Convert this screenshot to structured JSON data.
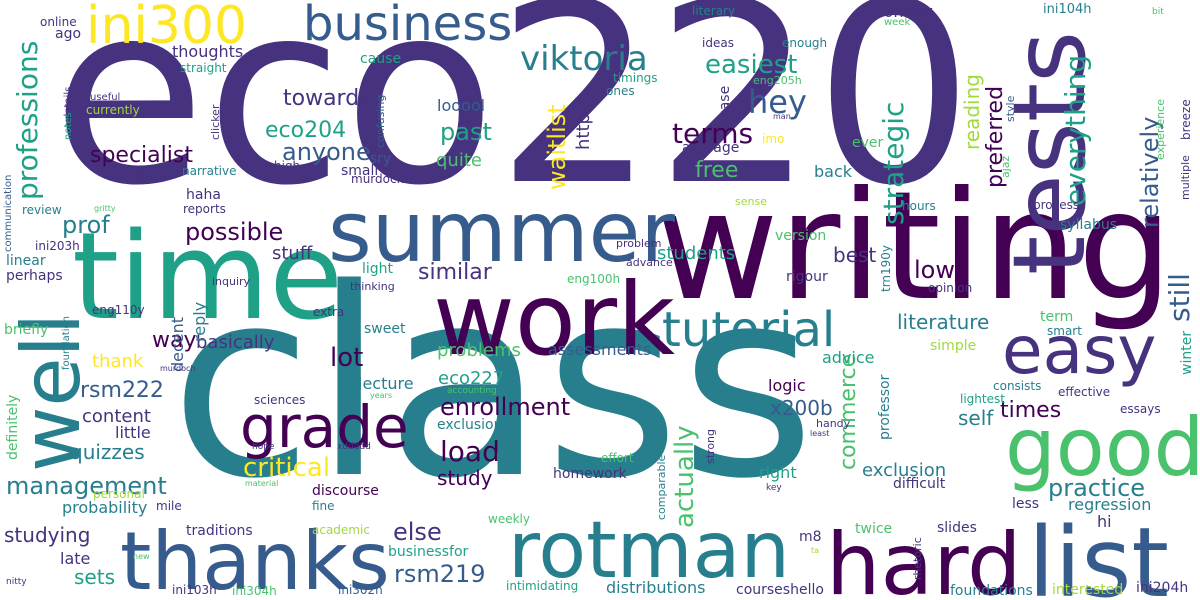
{
  "palette": [
    "#440154",
    "#46327e",
    "#365c8d",
    "#277f8e",
    "#1fa187",
    "#4ac16d",
    "#a0da39",
    "#fde725"
  ],
  "words": [
    {
      "text": "eco220",
      "color": "#46327e"
    },
    {
      "text": "class",
      "color": "#277f8e"
    },
    {
      "text": "writing",
      "color": "#440154"
    },
    {
      "text": "time",
      "color": "#1fa187"
    },
    {
      "text": "work",
      "color": "#440154"
    },
    {
      "text": "summer",
      "color": "#365c8d"
    },
    {
      "text": "tests",
      "color": "#46327e"
    },
    {
      "text": "hard",
      "color": "#440154"
    },
    {
      "text": "list",
      "color": "#365c8d"
    },
    {
      "text": "thanks",
      "color": "#365c8d"
    },
    {
      "text": "rotman",
      "color": "#277f8e"
    },
    {
      "text": "well",
      "color": "#277f8e"
    },
    {
      "text": "good",
      "color": "#4ac16d"
    },
    {
      "text": "easy",
      "color": "#46327e"
    },
    {
      "text": "business",
      "color": "#365c8d"
    },
    {
      "text": "ini300",
      "color": "#fde725"
    },
    {
      "text": "grade",
      "color": "#440154"
    },
    {
      "text": "tutorial",
      "color": "#277f8e"
    },
    {
      "text": "viktoria",
      "color": "#277f8e"
    },
    {
      "text": "easiest",
      "color": "#1fa187"
    },
    {
      "text": "hey",
      "color": "#365c8d"
    },
    {
      "text": "terms",
      "color": "#440154"
    },
    {
      "text": "strategic",
      "color": "#1fa187"
    },
    {
      "text": "preferred",
      "color": "#440154"
    },
    {
      "text": "reading",
      "color": "#a0da39"
    },
    {
      "text": "relatively",
      "color": "#365c8d"
    },
    {
      "text": "everything",
      "color": "#1fa187"
    },
    {
      "text": "still",
      "color": "#365c8d"
    },
    {
      "text": "professions",
      "color": "#1fa187"
    },
    {
      "text": "specialist",
      "color": "#440154"
    },
    {
      "text": "anyone",
      "color": "#365c8d"
    },
    {
      "text": "eco204",
      "color": "#1fa187"
    },
    {
      "text": "past",
      "color": "#1fa187"
    },
    {
      "text": "towards",
      "color": "#46327e"
    },
    {
      "text": "waitlist",
      "color": "#fde725"
    },
    {
      "text": "http",
      "color": "#46327e"
    },
    {
      "text": "free",
      "color": "#4ac16d"
    },
    {
      "text": "prof",
      "color": "#277f8e"
    },
    {
      "text": "possible",
      "color": "#440154"
    },
    {
      "text": "stuff",
      "color": "#46327e"
    },
    {
      "text": "way",
      "color": "#440154"
    },
    {
      "text": "basically",
      "color": "#46327e"
    },
    {
      "text": "lot",
      "color": "#440154"
    },
    {
      "text": "similar",
      "color": "#46327e"
    },
    {
      "text": "students",
      "color": "#1fa187"
    },
    {
      "text": "best",
      "color": "#46327e"
    },
    {
      "text": "low",
      "color": "#440154"
    },
    {
      "text": "literature",
      "color": "#277f8e"
    },
    {
      "text": "rsm222",
      "color": "#365c8d"
    },
    {
      "text": "thank",
      "color": "#fde725"
    },
    {
      "text": "content",
      "color": "#46327e"
    },
    {
      "text": "quizzes",
      "color": "#277f8e"
    },
    {
      "text": "little",
      "color": "#46327e"
    },
    {
      "text": "management",
      "color": "#277f8e"
    },
    {
      "text": "critical",
      "color": "#fde725"
    },
    {
      "text": "enrollment",
      "color": "#440154"
    },
    {
      "text": "load",
      "color": "#440154"
    },
    {
      "text": "study",
      "color": "#440154"
    },
    {
      "text": "actually",
      "color": "#4ac16d"
    },
    {
      "text": "commerce",
      "color": "#4ac16d"
    },
    {
      "text": "practice",
      "color": "#277f8e"
    },
    {
      "text": "times",
      "color": "#440154"
    },
    {
      "text": "self",
      "color": "#277f8e"
    },
    {
      "text": "x200b",
      "color": "#365c8d"
    },
    {
      "text": "problems",
      "color": "#4ac16d"
    },
    {
      "text": "assessments",
      "color": "#365c8d"
    },
    {
      "text": "eco227",
      "color": "#1fa187"
    },
    {
      "text": "exclusions",
      "color": "#277f8e"
    },
    {
      "text": "lecture",
      "color": "#277f8e"
    },
    {
      "text": "else",
      "color": "#46327e"
    },
    {
      "text": "rsm219",
      "color": "#365c8d"
    },
    {
      "text": "sets",
      "color": "#1fa187"
    },
    {
      "text": "studying",
      "color": "#46327e"
    },
    {
      "text": "late",
      "color": "#46327e"
    },
    {
      "text": "probability",
      "color": "#277f8e"
    },
    {
      "text": "definitely",
      "color": "#4ac16d"
    },
    {
      "text": "decent",
      "color": "#365c8d"
    },
    {
      "text": "reply",
      "color": "#277f8e"
    },
    {
      "text": "m8",
      "color": "#46327e"
    },
    {
      "text": "regression",
      "color": "#277f8e"
    },
    {
      "text": "hi",
      "color": "#46327e"
    },
    {
      "text": "distributions",
      "color": "#277f8e"
    },
    {
      "text": "courseshello",
      "color": "#46327e"
    },
    {
      "text": "interested",
      "color": "#a0da39"
    },
    {
      "text": "ini204h",
      "color": "#46327e"
    },
    {
      "text": "foundations",
      "color": "#277f8e"
    },
    {
      "text": "ini304h",
      "color": "#4ac16d"
    },
    {
      "text": "ini302h",
      "color": "#365c8d"
    },
    {
      "text": "ini103h",
      "color": "#46327e"
    },
    {
      "text": "intimidating",
      "color": "#1fa187"
    },
    {
      "text": "businessfor",
      "color": "#1fa187"
    },
    {
      "text": "traditions",
      "color": "#46327e"
    },
    {
      "text": "academic",
      "color": "#a0da39"
    },
    {
      "text": "weekly",
      "color": "#4ac16d"
    },
    {
      "text": "fine",
      "color": "#277f8e"
    },
    {
      "text": "discourse",
      "color": "#440154"
    },
    {
      "text": "homework",
      "color": "#46327e"
    },
    {
      "text": "right",
      "color": "#1fa187"
    },
    {
      "text": "exclusion",
      "color": "#277f8e"
    },
    {
      "text": "difficult",
      "color": "#46327e"
    },
    {
      "text": "twice",
      "color": "#4ac16d"
    },
    {
      "text": "slides",
      "color": "#46327e"
    },
    {
      "text": "less",
      "color": "#46327e"
    },
    {
      "text": "essays",
      "color": "#46327e"
    },
    {
      "text": "effective",
      "color": "#46327e"
    },
    {
      "text": "lightest",
      "color": "#1fa187"
    },
    {
      "text": "consists",
      "color": "#277f8e"
    },
    {
      "text": "winter",
      "color": "#1fa187"
    },
    {
      "text": "smart",
      "color": "#277f8e"
    },
    {
      "text": "term",
      "color": "#4ac16d"
    },
    {
      "text": "simple",
      "color": "#a0da39"
    },
    {
      "text": "advice",
      "color": "#1fa187"
    },
    {
      "text": "professor",
      "color": "#277f8e"
    },
    {
      "text": "logic",
      "color": "#440154"
    },
    {
      "text": "opinion",
      "color": "#46327e"
    },
    {
      "text": "trn190y",
      "color": "#277f8e"
    },
    {
      "text": "rigour",
      "color": "#46327e"
    },
    {
      "text": "syllabus",
      "color": "#277f8e"
    },
    {
      "text": "process",
      "color": "#46327e"
    },
    {
      "text": "hours",
      "color": "#277f8e"
    },
    {
      "text": "back",
      "color": "#277f8e"
    },
    {
      "text": "ever",
      "color": "#4ac16d"
    },
    {
      "text": "average",
      "color": "#46327e"
    },
    {
      "text": "imo",
      "color": "#fde725"
    },
    {
      "text": "case",
      "color": "#46327e"
    },
    {
      "text": "ones",
      "color": "#277f8e"
    },
    {
      "text": "timings",
      "color": "#1fa187"
    },
    {
      "text": "ideas",
      "color": "#46327e"
    },
    {
      "text": "enough",
      "color": "#277f8e"
    },
    {
      "text": "literary",
      "color": "#277f8e"
    },
    {
      "text": "monday",
      "color": "#46327e"
    },
    {
      "text": "week",
      "color": "#4ac16d"
    },
    {
      "text": "eng205h",
      "color": "#4ac16d"
    },
    {
      "text": "ini104h",
      "color": "#277f8e"
    },
    {
      "text": "bit",
      "color": "#4ac16d"
    },
    {
      "text": "style",
      "color": "#365c8d"
    },
    {
      "text": "man",
      "color": "#46327e"
    },
    {
      "text": "experience",
      "color": "#4ac16d"
    },
    {
      "text": "breeze",
      "color": "#46327e"
    },
    {
      "text": "multiple",
      "color": "#46327e"
    },
    {
      "text": "ajaz",
      "color": "#4ac16d"
    },
    {
      "text": "cause",
      "color": "#1fa187"
    },
    {
      "text": "ago",
      "color": "#46327e"
    },
    {
      "text": "thoughts",
      "color": "#46327e"
    },
    {
      "text": "straight",
      "color": "#1fa187"
    },
    {
      "text": "online",
      "color": "#46327e"
    },
    {
      "text": "details",
      "color": "#46327e"
    },
    {
      "text": "useful",
      "color": "#46327e"
    },
    {
      "text": "currently",
      "color": "#a0da39"
    },
    {
      "text": "clicker",
      "color": "#46327e"
    },
    {
      "text": "confusing",
      "color": "#365c8d"
    },
    {
      "text": "notes",
      "color": "#1fa187"
    },
    {
      "text": "looool",
      "color": "#365c8d"
    },
    {
      "text": "quite",
      "color": "#4ac16d"
    },
    {
      "text": "sry",
      "color": "#365c8d"
    },
    {
      "text": "small",
      "color": "#46327e"
    },
    {
      "text": "high",
      "color": "#46327e"
    },
    {
      "text": "murdock",
      "color": "#46327e"
    },
    {
      "text": "narrative",
      "color": "#277f8e"
    },
    {
      "text": "luck",
      "color": "#46327e"
    },
    {
      "text": "haha",
      "color": "#46327e"
    },
    {
      "text": "reports",
      "color": "#46327e"
    },
    {
      "text": "communication",
      "color": "#365c8d"
    },
    {
      "text": "review",
      "color": "#277f8e"
    },
    {
      "text": "gritty",
      "color": "#4ac16d"
    },
    {
      "text": "ini203h",
      "color": "#46327e"
    },
    {
      "text": "linear",
      "color": "#277f8e"
    },
    {
      "text": "perhaps",
      "color": "#46327e"
    },
    {
      "text": "eng110y",
      "color": "#46327e"
    },
    {
      "text": "briefly",
      "color": "#4ac16d"
    },
    {
      "text": "foundation",
      "color": "#277f8e"
    },
    {
      "text": "murdoch",
      "color": "#46327e"
    },
    {
      "text": "extra",
      "color": "#46327e"
    },
    {
      "text": "sweet",
      "color": "#277f8e"
    },
    {
      "text": "thinking",
      "color": "#46327e"
    },
    {
      "text": "light",
      "color": "#1fa187"
    },
    {
      "text": "eng100h",
      "color": "#4ac16d"
    },
    {
      "text": "inquiry",
      "color": "#46327e"
    },
    {
      "text": "problem",
      "color": "#46327e"
    },
    {
      "text": "advance",
      "color": "#46327e"
    },
    {
      "text": "version",
      "color": "#4ac16d"
    },
    {
      "text": "sense",
      "color": "#a0da39"
    },
    {
      "text": "sciences",
      "color": "#46327e"
    },
    {
      "text": "years",
      "color": "#4ac16d"
    },
    {
      "text": "accounting",
      "color": "#4ac16d"
    },
    {
      "text": "hope",
      "color": "#46327e"
    },
    {
      "text": "xddddd",
      "color": "#46327e"
    },
    {
      "text": "personal",
      "color": "#a0da39"
    },
    {
      "text": "mile",
      "color": "#46327e"
    },
    {
      "text": "material",
      "color": "#4ac16d"
    },
    {
      "text": "new",
      "color": "#4ac16d"
    },
    {
      "text": "nitty",
      "color": "#46327e"
    },
    {
      "text": "effort",
      "color": "#4ac16d"
    },
    {
      "text": "strong",
      "color": "#46327e"
    },
    {
      "text": "comparable",
      "color": "#277f8e"
    },
    {
      "text": "key",
      "color": "#46327e"
    },
    {
      "text": "ta",
      "color": "#a0da39"
    },
    {
      "text": "handy",
      "color": "#46327e"
    },
    {
      "text": "least",
      "color": "#46327e"
    },
    {
      "text": "rhetoric",
      "color": "#46327e"
    }
  ]
}
